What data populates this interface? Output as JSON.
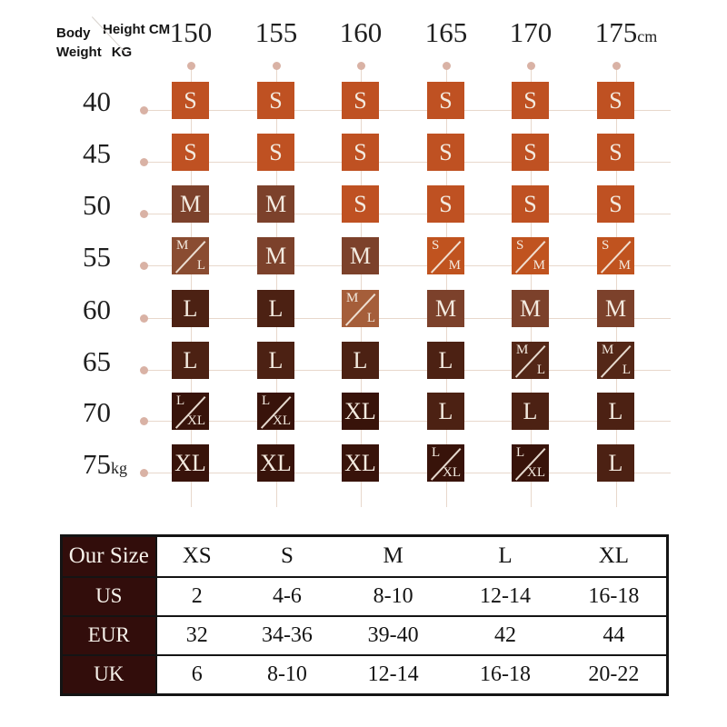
{
  "corner": {
    "body": "Body",
    "weight": "Weight",
    "kg": "KG",
    "height": "Height CM"
  },
  "grid": {
    "col_headers": [
      {
        "num": "150",
        "suffix": ""
      },
      {
        "num": "155",
        "suffix": ""
      },
      {
        "num": "160",
        "suffix": ""
      },
      {
        "num": "165",
        "suffix": ""
      },
      {
        "num": "170",
        "suffix": ""
      },
      {
        "num": "175",
        "suffix": "cm"
      }
    ],
    "rows": [
      {
        "label": "40",
        "suffix": "",
        "cells": [
          {
            "size": "S",
            "color": "#bf5122"
          },
          {
            "size": "S",
            "color": "#bf5122"
          },
          {
            "size": "S",
            "color": "#bf5122"
          },
          {
            "size": "S",
            "color": "#bf5122"
          },
          {
            "size": "S",
            "color": "#bf5122"
          },
          {
            "size": "S",
            "color": "#bf5122"
          }
        ]
      },
      {
        "label": "45",
        "suffix": "",
        "cells": [
          {
            "size": "S",
            "color": "#bf5122"
          },
          {
            "size": "S",
            "color": "#bf5122"
          },
          {
            "size": "S",
            "color": "#bf5122"
          },
          {
            "size": "S",
            "color": "#bf5122"
          },
          {
            "size": "S",
            "color": "#bf5122"
          },
          {
            "size": "S",
            "color": "#bf5122"
          }
        ]
      },
      {
        "label": "50",
        "suffix": "",
        "cells": [
          {
            "size": "M",
            "color": "#7c412b"
          },
          {
            "size": "M",
            "color": "#7c412b"
          },
          {
            "size": "S",
            "color": "#bf5122"
          },
          {
            "size": "S",
            "color": "#bf5122"
          },
          {
            "size": "S",
            "color": "#bf5122"
          },
          {
            "size": "S",
            "color": "#bf5122"
          }
        ]
      },
      {
        "label": "55",
        "suffix": "",
        "cells": [
          {
            "size": "M/L",
            "parts": [
              "M",
              "L"
            ],
            "color": "#8a4c31"
          },
          {
            "size": "M",
            "color": "#7c412b"
          },
          {
            "size": "M",
            "color": "#7c412b"
          },
          {
            "size": "S/M",
            "parts": [
              "S",
              "M"
            ],
            "color": "#c0531f"
          },
          {
            "size": "S/M",
            "parts": [
              "S",
              "M"
            ],
            "color": "#c0531f"
          },
          {
            "size": "S/M",
            "parts": [
              "S",
              "M"
            ],
            "color": "#c0531f"
          }
        ]
      },
      {
        "label": "60",
        "suffix": "",
        "cells": [
          {
            "size": "L",
            "color": "#4c2113"
          },
          {
            "size": "L",
            "color": "#4c2113"
          },
          {
            "size": "M/L",
            "parts": [
              "M",
              "L"
            ],
            "color": "#a55e3a"
          },
          {
            "size": "M",
            "color": "#7c412b"
          },
          {
            "size": "M",
            "color": "#7c412b"
          },
          {
            "size": "M",
            "color": "#7c412b"
          }
        ]
      },
      {
        "label": "65",
        "suffix": "",
        "cells": [
          {
            "size": "L",
            "color": "#4c2113"
          },
          {
            "size": "L",
            "color": "#4c2113"
          },
          {
            "size": "L",
            "color": "#4c2113"
          },
          {
            "size": "L",
            "color": "#4c2113"
          },
          {
            "size": "M/L",
            "parts": [
              "M",
              "L"
            ],
            "color": "#542717"
          },
          {
            "size": "M/L",
            "parts": [
              "M",
              "L"
            ],
            "color": "#542717"
          }
        ]
      },
      {
        "label": "70",
        "suffix": "",
        "cells": [
          {
            "size": "L/XL",
            "parts": [
              "L",
              "XL"
            ],
            "color": "#38130a"
          },
          {
            "size": "L/XL",
            "parts": [
              "L",
              "XL"
            ],
            "color": "#38130a"
          },
          {
            "size": "XL",
            "color": "#38130a"
          },
          {
            "size": "L",
            "color": "#4c2113"
          },
          {
            "size": "L",
            "color": "#4c2113"
          },
          {
            "size": "L",
            "color": "#4c2113"
          }
        ]
      },
      {
        "label": "75",
        "suffix": "kg",
        "cells": [
          {
            "size": "XL",
            "color": "#38130a"
          },
          {
            "size": "XL",
            "color": "#38130a"
          },
          {
            "size": "XL",
            "color": "#38130a"
          },
          {
            "size": "L/XL",
            "parts": [
              "L",
              "XL"
            ],
            "color": "#38130a"
          },
          {
            "size": "L/XL",
            "parts": [
              "L",
              "XL"
            ],
            "color": "#38130a"
          },
          {
            "size": "L",
            "color": "#4c2113"
          }
        ]
      }
    ]
  },
  "conversion_table": {
    "header_row": [
      "Our Size",
      "XS",
      "S",
      "M",
      "L",
      "XL"
    ],
    "rows": [
      [
        "US",
        "2",
        "4-6",
        "8-10",
        "12-14",
        "16-18"
      ],
      [
        "EUR",
        "32",
        "34-36",
        "39-40",
        "42",
        "44"
      ],
      [
        "UK",
        "6",
        "8-10",
        "12-14",
        "16-18",
        "20-22"
      ]
    ]
  },
  "colors": {
    "size_s": "#bf5122",
    "size_m": "#7c412b",
    "size_ml_mid": "#8a4c31",
    "size_ml_copper": "#a55e3a",
    "size_ml_dark": "#542717",
    "size_l": "#4c2113",
    "size_xl": "#38130a",
    "grid_line": "#e8d8cc",
    "grid_dot": "#d9b2a5",
    "table_header_bg": "#320d0b",
    "cell_text": "#f3eadf"
  },
  "chart_data": [
    {
      "type": "heatmap",
      "title": "Recommended size by height and body weight",
      "xlabel": "Height CM",
      "ylabel": "Body Weight KG",
      "x": [
        150,
        155,
        160,
        165,
        170,
        175
      ],
      "y": [
        40,
        45,
        50,
        55,
        60,
        65,
        70,
        75
      ],
      "values": [
        [
          "S",
          "S",
          "S",
          "S",
          "S",
          "S"
        ],
        [
          "S",
          "S",
          "S",
          "S",
          "S",
          "S"
        ],
        [
          "M",
          "M",
          "S",
          "S",
          "S",
          "S"
        ],
        [
          "M/L",
          "M",
          "M",
          "S/M",
          "S/M",
          "S/M"
        ],
        [
          "L",
          "L",
          "M/L",
          "M",
          "M",
          "M"
        ],
        [
          "L",
          "L",
          "L",
          "L",
          "M/L",
          "M/L"
        ],
        [
          "L/XL",
          "L/XL",
          "XL",
          "L",
          "L",
          "L"
        ],
        [
          "XL",
          "XL",
          "XL",
          "L/XL",
          "L/XL",
          "L"
        ]
      ],
      "legend_position": "none",
      "grid": true
    },
    {
      "type": "table",
      "columns": [
        "Our Size",
        "XS",
        "S",
        "M",
        "L",
        "XL"
      ],
      "rows": [
        [
          "US",
          "2",
          "4-6",
          "8-10",
          "12-14",
          "16-18"
        ],
        [
          "EUR",
          "32",
          "34-36",
          "39-40",
          "42",
          "44"
        ],
        [
          "UK",
          "6",
          "8-10",
          "12-14",
          "16-18",
          "20-22"
        ]
      ]
    }
  ]
}
